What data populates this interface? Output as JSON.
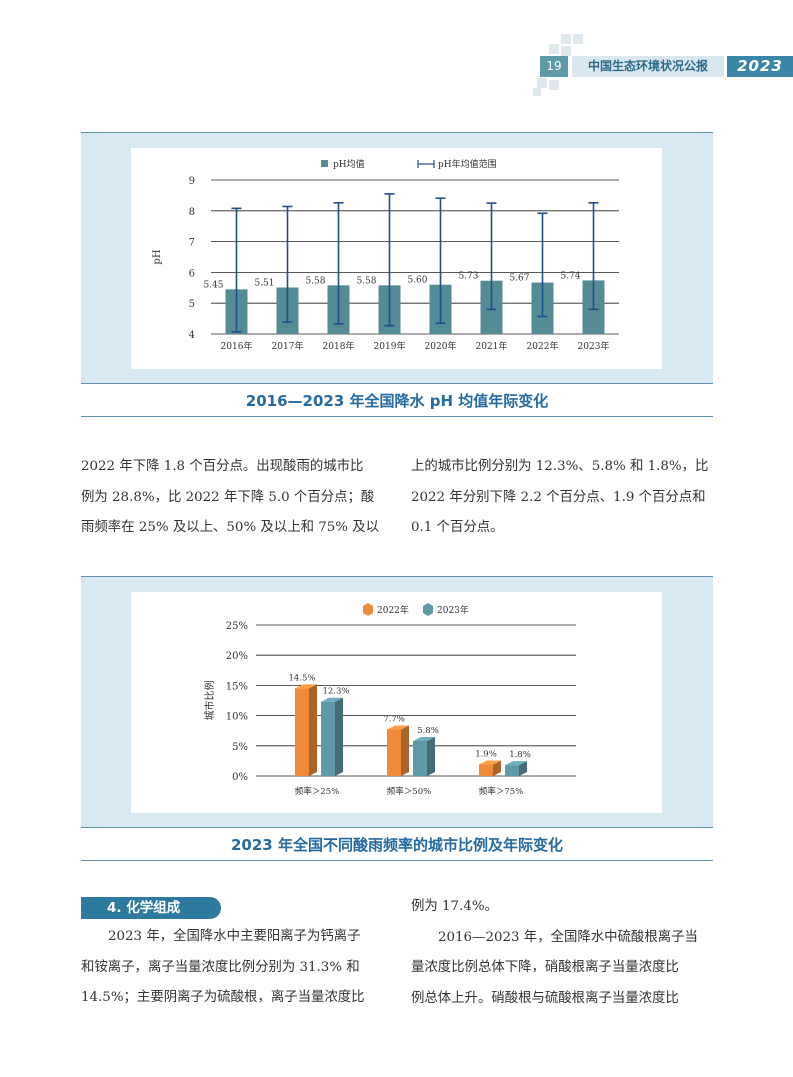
{
  "header": {
    "page_number": "19",
    "publication": "中国生态环境状况公报",
    "year": "2023"
  },
  "figure1": {
    "caption": "2016—2023 年全国降水 pH 均值年际变化",
    "legend_mean": "pH均值",
    "legend_range": "pH年均值范围",
    "ylabel": "pH",
    "chart_data": {
      "type": "bar",
      "categories": [
        "2016年",
        "2017年",
        "2018年",
        "2019年",
        "2020年",
        "2021年",
        "2022年",
        "2023年"
      ],
      "series": [
        {
          "name": "pH均值",
          "values": [
            5.45,
            5.51,
            5.58,
            5.58,
            5.6,
            5.73,
            5.67,
            5.74
          ],
          "labels": [
            "5.45",
            "5.51",
            "5.58",
            "5.58",
            "5.60",
            "5.73",
            "5.67",
            "5.74"
          ]
        }
      ],
      "ranges": [
        [
          4.07,
          8.08
        ],
        [
          4.39,
          8.14
        ],
        [
          4.33,
          8.26
        ],
        [
          4.27,
          8.55
        ],
        [
          4.35,
          8.41
        ],
        [
          4.8,
          8.25
        ],
        [
          4.57,
          7.92
        ],
        [
          4.8,
          8.26
        ]
      ],
      "ylabel": "pH",
      "yticks": [
        "4",
        "5",
        "6",
        "7",
        "8",
        "9"
      ],
      "ylim": [
        4,
        9
      ],
      "grid": true,
      "legend": "top-center",
      "colors": {
        "bar": "#548c95",
        "range": "#1f4e8c"
      }
    }
  },
  "paragraph1": {
    "left": [
      "2022 年下降 1.8 个百分点。出现酸雨的城市比",
      "例为 28.8%，比 2022 年下降 5.0 个百分点；酸",
      "雨频率在 25% 及以上、50% 及以上和 75% 及以"
    ],
    "right": [
      "上的城市比例分别为 12.3%、5.8% 和 1.8%，比",
      "2022 年分别下降 2.2 个百分点、1.9 个百分点和",
      "0.1 个百分点。"
    ]
  },
  "figure2": {
    "caption": "2023 年全国不同酸雨频率的城市比例及年际变化",
    "ylabel": "城市比例",
    "chart_data": {
      "type": "bar",
      "categories": [
        "频率＞25%",
        "频率＞50%",
        "频率＞75%"
      ],
      "series": [
        {
          "name": "2022年",
          "values": [
            14.5,
            7.7,
            1.9
          ],
          "labels": [
            "14.5%",
            "7.7%",
            "1.9%"
          ]
        },
        {
          "name": "2023年",
          "values": [
            12.3,
            5.8,
            1.8
          ],
          "labels": [
            "12.3%",
            "5.8%",
            "1.8%"
          ]
        }
      ],
      "ylabel": "城市比例",
      "yticks": [
        "0%",
        "5%",
        "10%",
        "15%",
        "20%",
        "25%"
      ],
      "ylim": [
        0,
        25
      ],
      "grid": true,
      "legend": "top-center",
      "colors": {
        "2022年": "#ef8a3a",
        "2023年": "#5f98a6"
      }
    }
  },
  "section": {
    "title": "4. 化学组成",
    "left": [
      "2023 年，全国降水中主要阳离子为钙离子",
      "和铵离子，离子当量浓度比例分别为 31.3% 和",
      "14.5%；主要阴离子为硫酸根，离子当量浓度比"
    ],
    "right": [
      "例为 17.4%。",
      "2016—2023 年，全国降水中硫酸根离子当",
      "量浓度比例总体下降，硝酸根离子当量浓度比",
      "例总体上升。硝酸根与硫酸根离子当量浓度比"
    ]
  }
}
